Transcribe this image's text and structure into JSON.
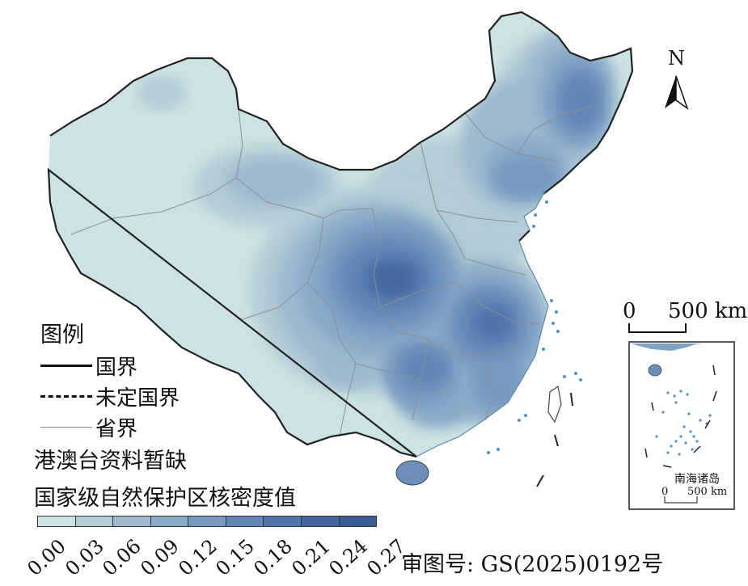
{
  "map": {
    "north_label": "N",
    "scale_main": {
      "zero": "0",
      "end": "500 km"
    },
    "inset": {
      "title": "南海诸岛",
      "zero": "0",
      "end": "500 km"
    }
  },
  "legend": {
    "title": "图例",
    "items": [
      {
        "label": "国界",
        "style": "solid-thick"
      },
      {
        "label": "未定国界",
        "style": "dashed"
      },
      {
        "label": "省界",
        "style": "solid-thin"
      }
    ],
    "no_data_note": "港澳台资料暂缺",
    "ramp_title": "国家级自然保护区核密度值",
    "ramp_ticks": [
      "0.00",
      "0.03",
      "0.06",
      "0.09",
      "0.12",
      "0.15",
      "0.18",
      "0.21",
      "0.24",
      "0.27"
    ],
    "ramp_colors": [
      "#cde2e2",
      "#b3ccd6",
      "#9cb9cf",
      "#88a9c8",
      "#7598c0",
      "#6286b6",
      "#5075aa",
      "#42669e",
      "#385b93"
    ]
  },
  "approval_number": "审图号: GS(2025)0192号"
}
